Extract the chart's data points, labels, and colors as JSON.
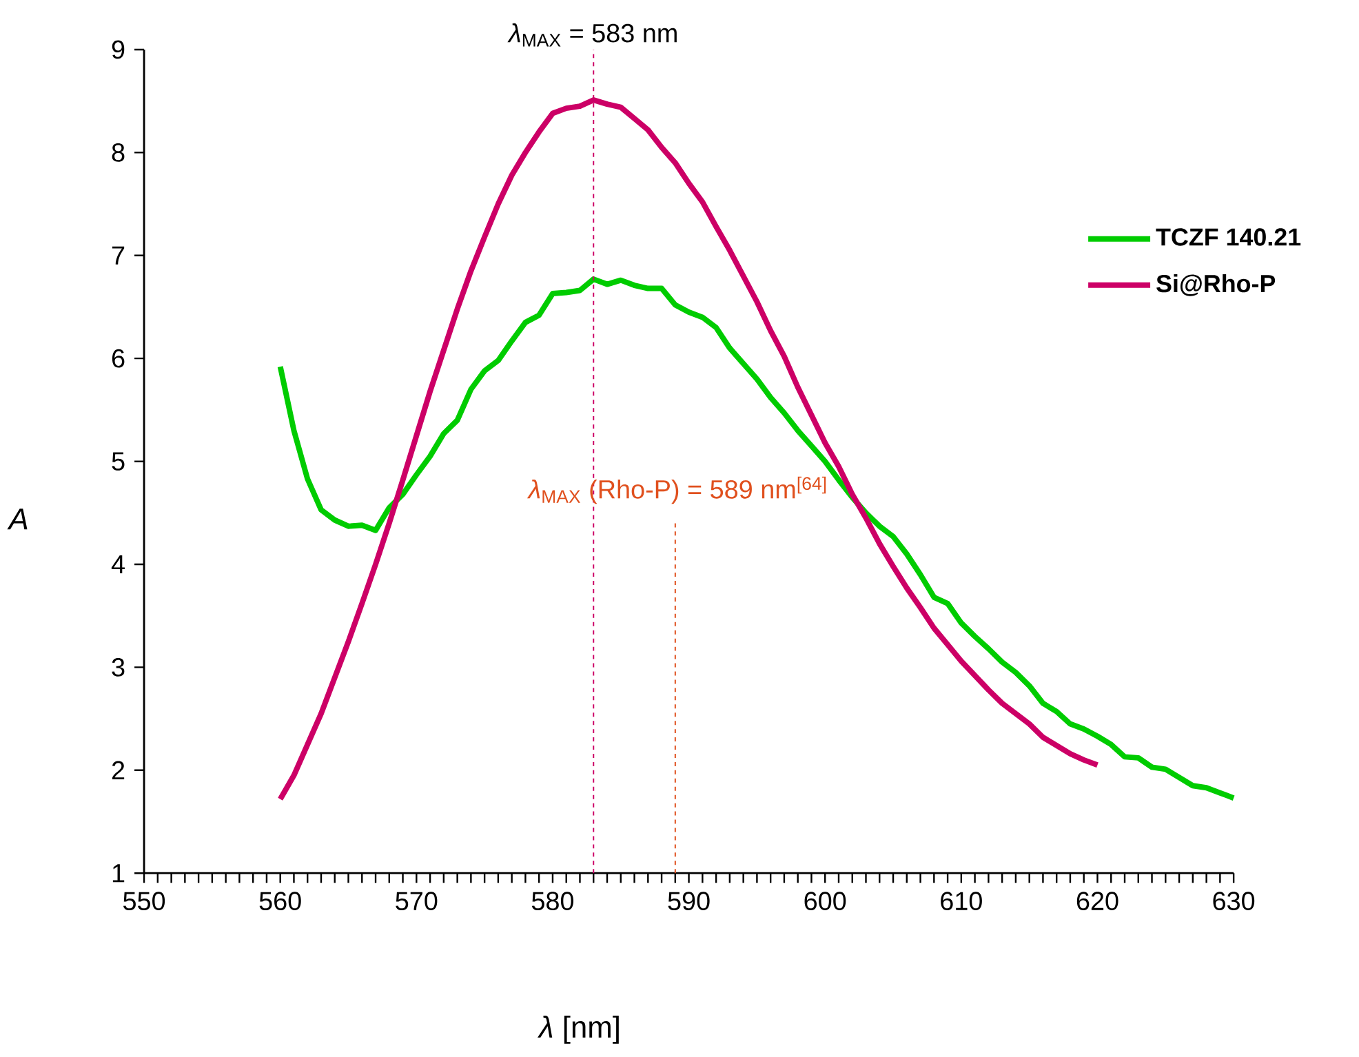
{
  "chart_data": {
    "type": "line",
    "xlabel": "*λ* [nm]",
    "ylabel": "A",
    "xlim": [
      550,
      630
    ],
    "xticks": [
      550,
      560,
      570,
      580,
      590,
      600,
      610,
      620,
      630
    ],
    "ylim": [
      1,
      9
    ],
    "yticks": [
      1,
      2,
      3,
      4,
      5,
      6,
      7,
      8,
      9
    ],
    "grid": false,
    "legend": "right",
    "marker": "none",
    "line_style": "solid",
    "series": [
      {
        "name": "TCZF 140.21",
        "color": "#00cc00",
        "x": [
          560,
          561,
          562,
          563,
          564,
          565,
          566,
          567,
          568,
          569,
          570,
          571,
          572,
          573,
          574,
          575,
          576,
          577,
          578,
          579,
          580,
          581,
          582,
          583,
          584,
          585,
          586,
          587,
          588,
          589,
          590,
          591,
          592,
          593,
          594,
          595,
          596,
          597,
          598,
          599,
          600,
          601,
          602,
          603,
          604,
          605,
          606,
          607,
          608,
          609,
          610,
          611,
          612,
          613,
          614,
          615,
          616,
          617,
          618,
          619,
          620,
          621,
          622,
          623,
          624,
          625,
          626,
          627,
          628,
          629,
          630
        ],
        "values": [
          5.92,
          5.3,
          4.83,
          4.53,
          4.43,
          4.37,
          4.38,
          4.33,
          4.55,
          4.68,
          4.87,
          5.05,
          5.27,
          5.4,
          5.7,
          5.88,
          5.98,
          6.17,
          6.35,
          6.42,
          6.63,
          6.64,
          6.66,
          6.77,
          6.72,
          6.76,
          6.71,
          6.68,
          6.68,
          6.52,
          6.45,
          6.4,
          6.3,
          6.1,
          5.95,
          5.8,
          5.62,
          5.47,
          5.3,
          5.15,
          5.0,
          4.82,
          4.65,
          4.5,
          4.37,
          4.27,
          4.1,
          3.9,
          3.68,
          3.62,
          3.43,
          3.3,
          3.18,
          3.05,
          2.95,
          2.82,
          2.65,
          2.57,
          2.45,
          2.4,
          2.33,
          2.25,
          2.13,
          2.12,
          2.03,
          2.01,
          1.93,
          1.85,
          1.83,
          1.78,
          1.73
        ]
      },
      {
        "name": "Si@Rho-P",
        "color": "#cc0066",
        "x": [
          560,
          561,
          562,
          563,
          564,
          565,
          566,
          567,
          568,
          569,
          570,
          571,
          572,
          573,
          574,
          575,
          576,
          577,
          578,
          579,
          580,
          581,
          582,
          583,
          584,
          585,
          586,
          587,
          588,
          589,
          590,
          591,
          592,
          593,
          594,
          595,
          596,
          597,
          598,
          599,
          600,
          601,
          602,
          603,
          604,
          605,
          606,
          607,
          608,
          609,
          610,
          611,
          612,
          613,
          614,
          615,
          616,
          617,
          618,
          619,
          620
        ],
        "values": [
          1.72,
          1.95,
          2.25,
          2.55,
          2.9,
          3.25,
          3.62,
          4.0,
          4.4,
          4.82,
          5.25,
          5.68,
          6.08,
          6.48,
          6.85,
          7.18,
          7.5,
          7.78,
          8.0,
          8.2,
          8.38,
          8.43,
          8.45,
          8.51,
          8.47,
          8.44,
          8.33,
          8.22,
          8.05,
          7.9,
          7.7,
          7.52,
          7.28,
          7.05,
          6.8,
          6.55,
          6.27,
          6.02,
          5.72,
          5.45,
          5.18,
          4.95,
          4.68,
          4.45,
          4.2,
          3.98,
          3.77,
          3.58,
          3.38,
          3.22,
          3.06,
          2.92,
          2.78,
          2.65,
          2.55,
          2.45,
          2.32,
          2.24,
          2.16,
          2.1,
          2.05
        ]
      }
    ],
    "ref_lines": [
      {
        "axis": "x",
        "value": 583,
        "label": "*λ*$_{MAX}$ = 583 nm",
        "color": "#cc0066",
        "line_style": "dashed"
      },
      {
        "axis": "x",
        "value": 589,
        "label": "*λ*$_{MAX}$ (Rho-P) = 589 nm$^{[64]}$",
        "color": "#e0501e",
        "line_style": "dashed"
      }
    ]
  }
}
